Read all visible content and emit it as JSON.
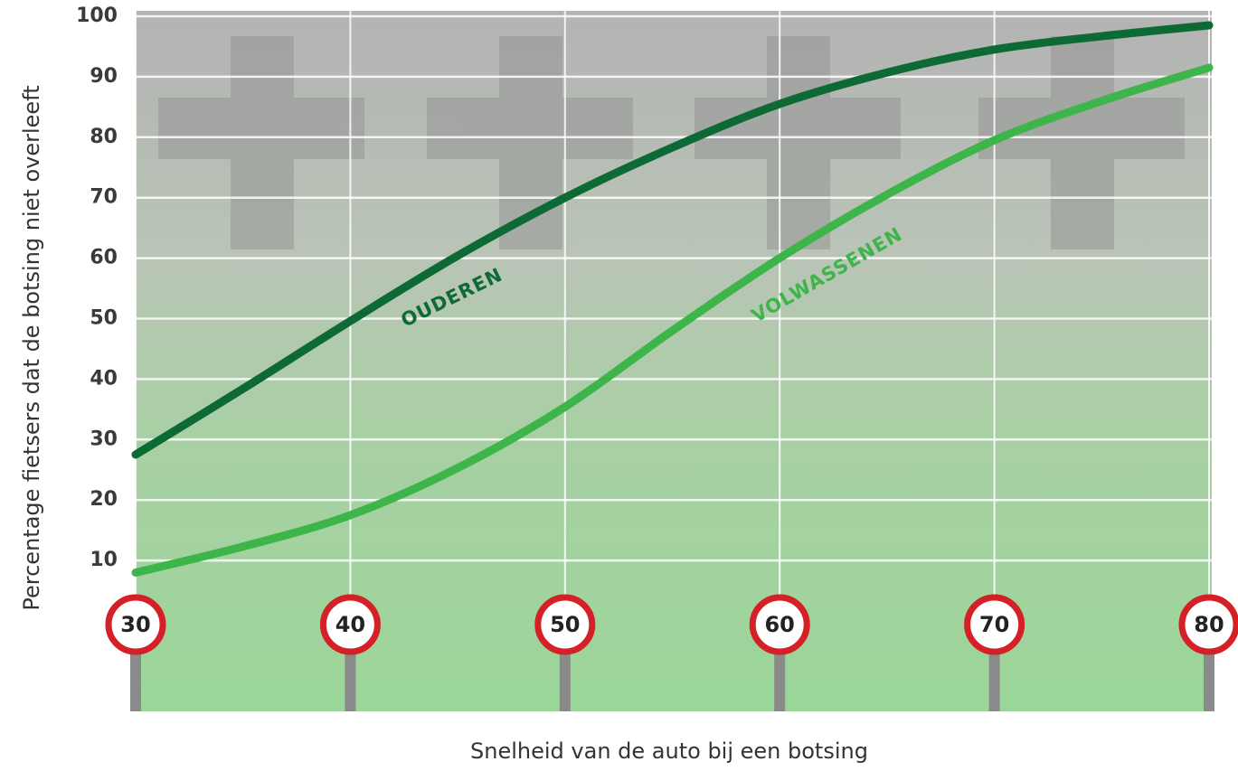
{
  "chart_data": {
    "type": "line",
    "x_label": "Snelheid van de auto bij een botsing",
    "y_label": "Percentage fietsers dat de botsing niet overleeft",
    "x": [
      30,
      35,
      40,
      45,
      50,
      55,
      60,
      65,
      70,
      75,
      80
    ],
    "series": [
      {
        "name": "OUDEREN",
        "color": "#0e6a35",
        "values": [
          27.5,
          38.4,
          49.6,
          60.4,
          70,
          78.3,
          85.5,
          90.7,
          94.5,
          96.7,
          98.5
        ]
      },
      {
        "name": "VOLWASSENEN",
        "color": "#3db54a",
        "values": [
          8,
          12.3,
          17.5,
          25.3,
          35.4,
          48,
          60,
          70.5,
          79.5,
          86,
          91.5
        ]
      }
    ],
    "xlim": [
      30,
      80
    ],
    "xticks": [
      30,
      40,
      50,
      60,
      70,
      80
    ],
    "ylim": [
      0,
      100
    ],
    "yticks": [
      10,
      20,
      30,
      40,
      50,
      60,
      70,
      80,
      90,
      100
    ],
    "grid": true
  }
}
